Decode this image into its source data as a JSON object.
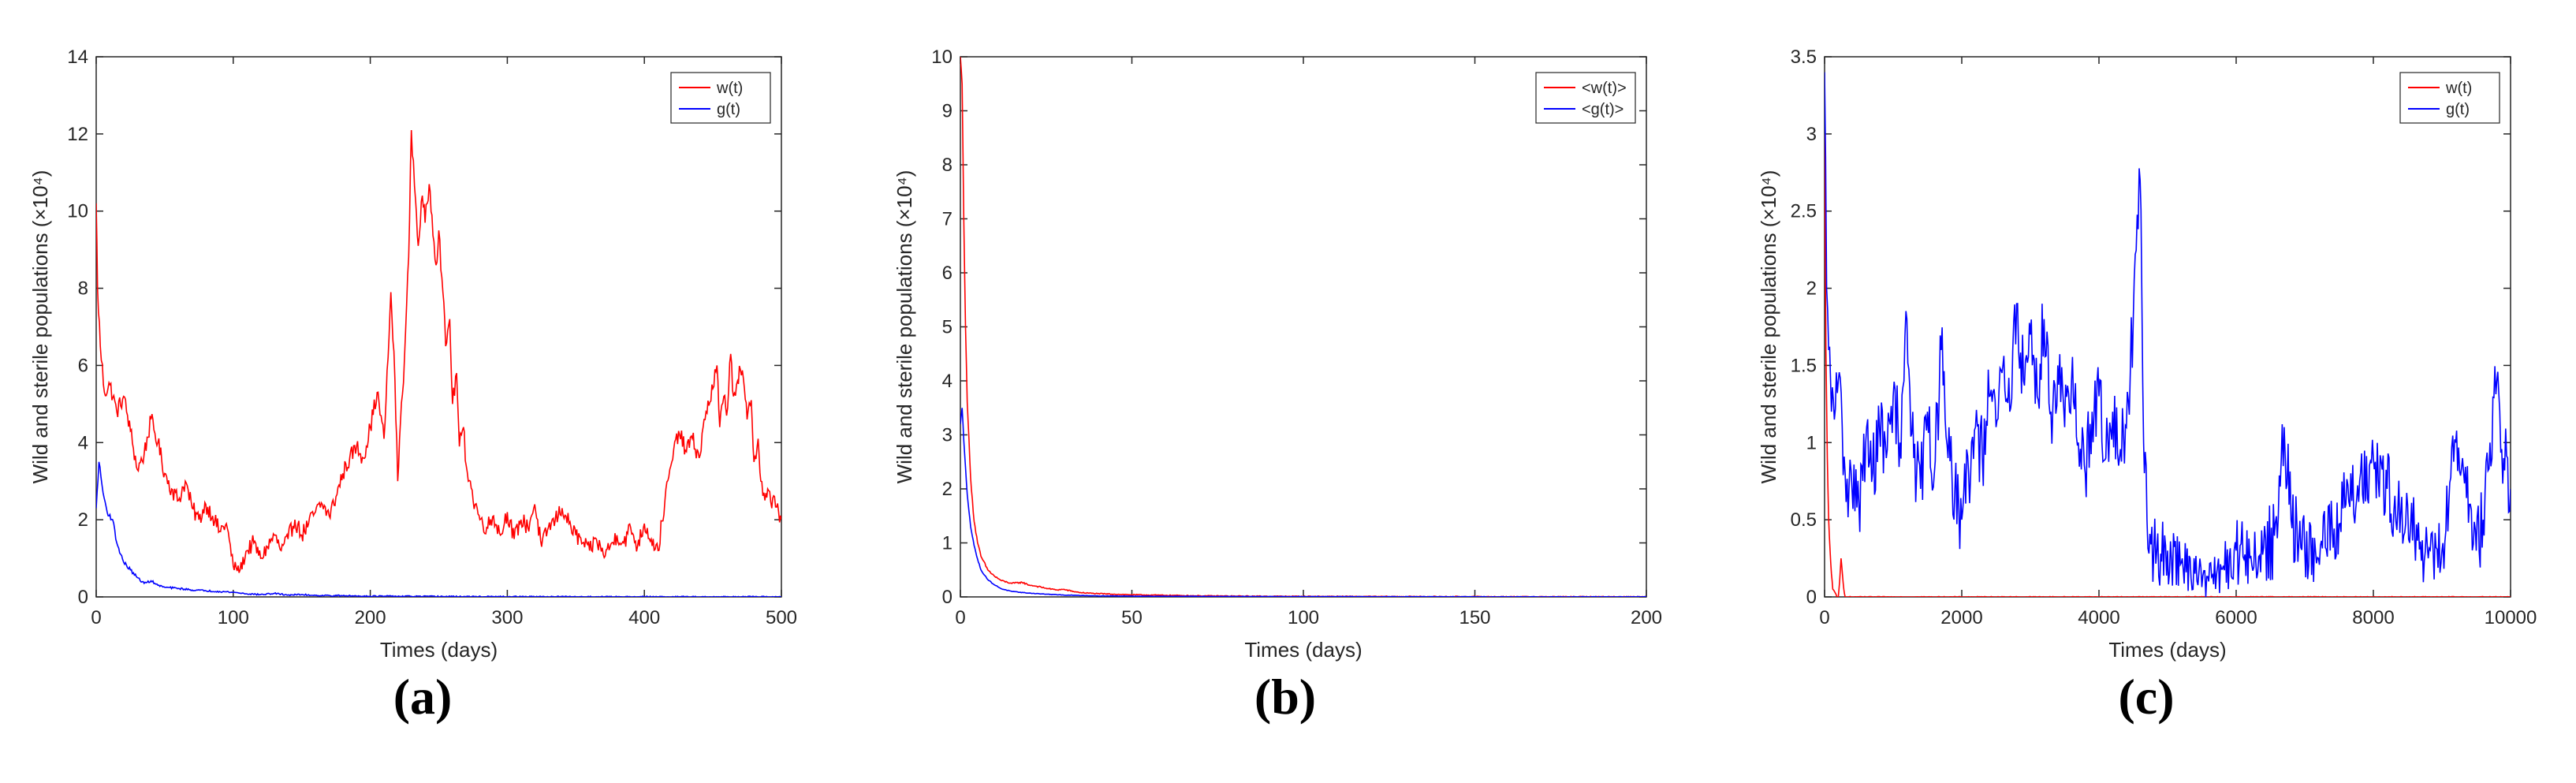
{
  "chart_data": [
    {
      "id": "a",
      "type": "line",
      "panel_label": "(a)",
      "xlabel": "Times (days)",
      "ylabel": "Wild and sterile populations (×10⁴)",
      "xlim": [
        0,
        500
      ],
      "ylim": [
        0,
        14
      ],
      "xticks": [
        0,
        100,
        200,
        300,
        400,
        500
      ],
      "yticks": [
        0,
        2,
        4,
        6,
        8,
        10,
        12,
        14
      ],
      "legend_position": "top-right",
      "noise": 0.05,
      "series": [
        {
          "name": "w(t)",
          "color": "#ff0000",
          "noise": 0.05,
          "x": [
            0,
            1,
            3,
            6,
            10,
            15,
            20,
            25,
            30,
            35,
            40,
            45,
            50,
            55,
            60,
            65,
            70,
            75,
            80,
            85,
            90,
            95,
            100,
            105,
            110,
            115,
            120,
            125,
            130,
            135,
            140,
            145,
            150,
            155,
            160,
            165,
            170,
            175,
            180,
            185,
            190,
            195,
            200,
            205,
            210,
            213,
            215,
            218,
            220,
            222,
            225,
            228,
            230,
            233,
            235,
            238,
            240,
            243,
            245,
            248,
            250,
            253,
            255,
            258,
            260,
            263,
            265,
            268,
            270,
            273,
            275,
            278,
            280,
            285,
            290,
            295,
            300,
            305,
            310,
            315,
            320,
            325,
            330,
            335,
            340,
            345,
            350,
            355,
            360,
            365,
            370,
            375,
            380,
            385,
            390,
            395,
            400,
            405,
            410,
            415,
            420,
            425,
            430,
            435,
            440,
            445,
            450,
            453,
            455,
            458,
            460,
            463,
            465,
            468,
            470,
            473,
            475,
            478,
            480,
            483,
            485,
            488,
            490,
            493,
            495,
            498,
            500
          ],
          "y": [
            10.2,
            8.0,
            6.5,
            5.3,
            5.5,
            4.8,
            5.2,
            4.3,
            3.3,
            3.7,
            4.6,
            4.0,
            3.2,
            2.8,
            2.5,
            3.0,
            2.3,
            2.0,
            2.4,
            2.1,
            1.7,
            1.9,
            0.8,
            0.7,
            1.2,
            1.4,
            1.0,
            1.3,
            1.6,
            1.2,
            1.5,
            2.0,
            1.6,
            1.9,
            2.2,
            2.4,
            2.1,
            2.6,
            3.2,
            3.6,
            3.9,
            3.6,
            4.4,
            5.3,
            4.1,
            6.2,
            7.9,
            5.6,
            3.0,
            4.5,
            6.2,
            8.8,
            12.1,
            10.3,
            9.1,
            10.4,
            9.7,
            10.7,
            9.9,
            8.6,
            9.5,
            7.9,
            6.5,
            7.2,
            5.0,
            5.8,
            3.9,
            4.4,
            3.4,
            3.0,
            2.5,
            2.3,
            2.0,
            1.8,
            2.1,
            1.6,
            2.2,
            1.5,
            2.0,
            1.8,
            2.4,
            1.3,
            1.8,
            2.0,
            2.3,
            1.9,
            1.6,
            1.4,
            1.2,
            1.5,
            1.1,
            1.3,
            1.6,
            1.4,
            1.8,
            1.3,
            1.9,
            1.5,
            1.2,
            2.5,
            3.5,
            4.3,
            3.8,
            4.1,
            3.6,
            4.8,
            5.4,
            6.0,
            4.4,
            5.2,
            4.7,
            6.3,
            5.2,
            5.6,
            5.9,
            5.4,
            4.6,
            5.1,
            3.5,
            4.1,
            3.0,
            2.5,
            2.8,
            2.3,
            2.6,
            2.2,
            2.0
          ]
        },
        {
          "name": "g(t)",
          "color": "#0000ff",
          "noise": 0.015,
          "x": [
            0,
            2,
            5,
            8,
            12,
            15,
            20,
            25,
            30,
            35,
            40,
            45,
            50,
            60,
            70,
            80,
            90,
            100,
            110,
            120,
            130,
            140,
            150,
            160,
            180,
            200,
            230,
            260,
            300,
            350,
            400,
            450,
            500
          ],
          "y": [
            2.3,
            3.5,
            2.7,
            2.2,
            2.0,
            1.4,
            0.9,
            0.7,
            0.5,
            0.35,
            0.42,
            0.3,
            0.25,
            0.22,
            0.18,
            0.16,
            0.14,
            0.12,
            0.08,
            0.06,
            0.09,
            0.05,
            0.06,
            0.04,
            0.03,
            0.02,
            0.015,
            0.01,
            0.005,
            0.004,
            0.003,
            0.002,
            0.002
          ]
        }
      ]
    },
    {
      "id": "b",
      "type": "line",
      "panel_label": "(b)",
      "xlabel": "Times (days)",
      "ylabel": "Wild and sterile populations (×10⁴)",
      "xlim": [
        0,
        200
      ],
      "ylim": [
        0,
        10
      ],
      "xticks": [
        0,
        50,
        100,
        150,
        200
      ],
      "yticks": [
        0,
        1,
        2,
        3,
        4,
        5,
        6,
        7,
        8,
        9,
        10
      ],
      "legend_position": "top-right",
      "series": [
        {
          "name": "<w(t)>",
          "color": "#ff0000",
          "noise": 0.01,
          "x": [
            0,
            0.5,
            1,
            1.5,
            2,
            3,
            4,
            5,
            6,
            8,
            10,
            12,
            15,
            18,
            20,
            22,
            25,
            28,
            30,
            33,
            35,
            40,
            45,
            50,
            60,
            70,
            80,
            100,
            130,
            160,
            200
          ],
          "y": [
            10,
            9.5,
            7.0,
            5.0,
            3.6,
            2.2,
            1.4,
            1.0,
            0.75,
            0.5,
            0.38,
            0.3,
            0.25,
            0.27,
            0.22,
            0.2,
            0.16,
            0.13,
            0.14,
            0.1,
            0.08,
            0.06,
            0.05,
            0.04,
            0.03,
            0.02,
            0.015,
            0.01,
            0.006,
            0.004,
            0.003
          ]
        },
        {
          "name": "<g(t)>",
          "color": "#0000ff",
          "noise": 0.005,
          "x": [
            0,
            0.5,
            1,
            1.5,
            2,
            3,
            4,
            5,
            6,
            8,
            10,
            12,
            15,
            20,
            25,
            30,
            40,
            50,
            70,
            100,
            150,
            200
          ],
          "y": [
            3.2,
            3.5,
            2.9,
            2.4,
            1.9,
            1.3,
            0.95,
            0.7,
            0.5,
            0.32,
            0.22,
            0.15,
            0.1,
            0.07,
            0.05,
            0.035,
            0.02,
            0.015,
            0.01,
            0.006,
            0.003,
            0.002
          ]
        }
      ]
    },
    {
      "id": "c",
      "type": "line",
      "panel_label": "(c)",
      "xlabel": "Times (days)",
      "ylabel": "Wild and sterile populations (×10⁴)",
      "xlim": [
        0,
        10000
      ],
      "ylim": [
        0,
        3.5
      ],
      "xticks": [
        0,
        2000,
        4000,
        6000,
        8000,
        10000
      ],
      "yticks": [
        0,
        0.5,
        1,
        1.5,
        2,
        2.5,
        3,
        3.5
      ],
      "legend_position": "top-right",
      "series": [
        {
          "name": "w(t)",
          "color": "#ff0000",
          "noise": 0.01,
          "x": [
            0,
            10,
            20,
            40,
            60,
            80,
            100,
            120,
            150,
            180,
            200,
            220,
            240,
            260,
            280,
            300,
            350,
            400,
            500,
            1000,
            2000,
            4000,
            6000,
            8000,
            10000
          ],
          "y": [
            3.0,
            2.2,
            1.6,
            0.9,
            0.5,
            0.3,
            0.15,
            0.05,
            0.03,
            0.0,
            0.0,
            0.1,
            0.25,
            0.15,
            0.05,
            0.0,
            0.0,
            0.0,
            0.0,
            0.0,
            0.0,
            0.0,
            0.0,
            0.0,
            0.0
          ]
        },
        {
          "name": "g(t)",
          "color": "#0000ff",
          "noise": 0.22,
          "x": [
            0,
            30,
            60,
            100,
            200,
            300,
            400,
            500,
            600,
            700,
            800,
            900,
            1000,
            1100,
            1200,
            1300,
            1400,
            1500,
            1600,
            1700,
            1800,
            1900,
            2000,
            2100,
            2200,
            2300,
            2400,
            2500,
            2600,
            2700,
            2800,
            2900,
            3000,
            3100,
            3200,
            3300,
            3400,
            3500,
            3600,
            3700,
            3800,
            3900,
            4000,
            4100,
            4200,
            4300,
            4400,
            4500,
            4600,
            4650,
            4700,
            4800,
            4900,
            5000,
            5200,
            5400,
            5600,
            5800,
            6000,
            6200,
            6400,
            6600,
            6700,
            6800,
            7000,
            7200,
            7400,
            7600,
            7800,
            8000,
            8200,
            8400,
            8600,
            8800,
            9000,
            9100,
            9200,
            9300,
            9400,
            9500,
            9600,
            9700,
            9800,
            9900,
            10000
          ],
          "y": [
            3.4,
            2.0,
            1.6,
            1.2,
            1.4,
            0.8,
            0.7,
            0.6,
            1.0,
            0.8,
            1.1,
            0.9,
            1.3,
            1.0,
            1.8,
            0.9,
            0.7,
            1.2,
            0.8,
            1.6,
            0.9,
            0.7,
            0.5,
            0.8,
            1.1,
            0.9,
            1.3,
            1.1,
            1.5,
            1.2,
            1.9,
            1.4,
            1.7,
            1.3,
            1.8,
            1.2,
            1.5,
            1.1,
            1.4,
            1.0,
            0.8,
            1.2,
            1.3,
            0.9,
            1.2,
            0.9,
            1.1,
            1.8,
            2.7,
            1.0,
            0.5,
            0.3,
            0.28,
            0.3,
            0.22,
            0.15,
            0.1,
            0.18,
            0.3,
            0.25,
            0.32,
            0.38,
            1.1,
            0.5,
            0.3,
            0.25,
            0.45,
            0.6,
            0.75,
            0.9,
            0.7,
            0.55,
            0.4,
            0.25,
            0.3,
            0.6,
            1.0,
            0.9,
            0.6,
            0.3,
            0.5,
            1.0,
            1.4,
            0.9,
            0.7
          ]
        }
      ]
    }
  ]
}
